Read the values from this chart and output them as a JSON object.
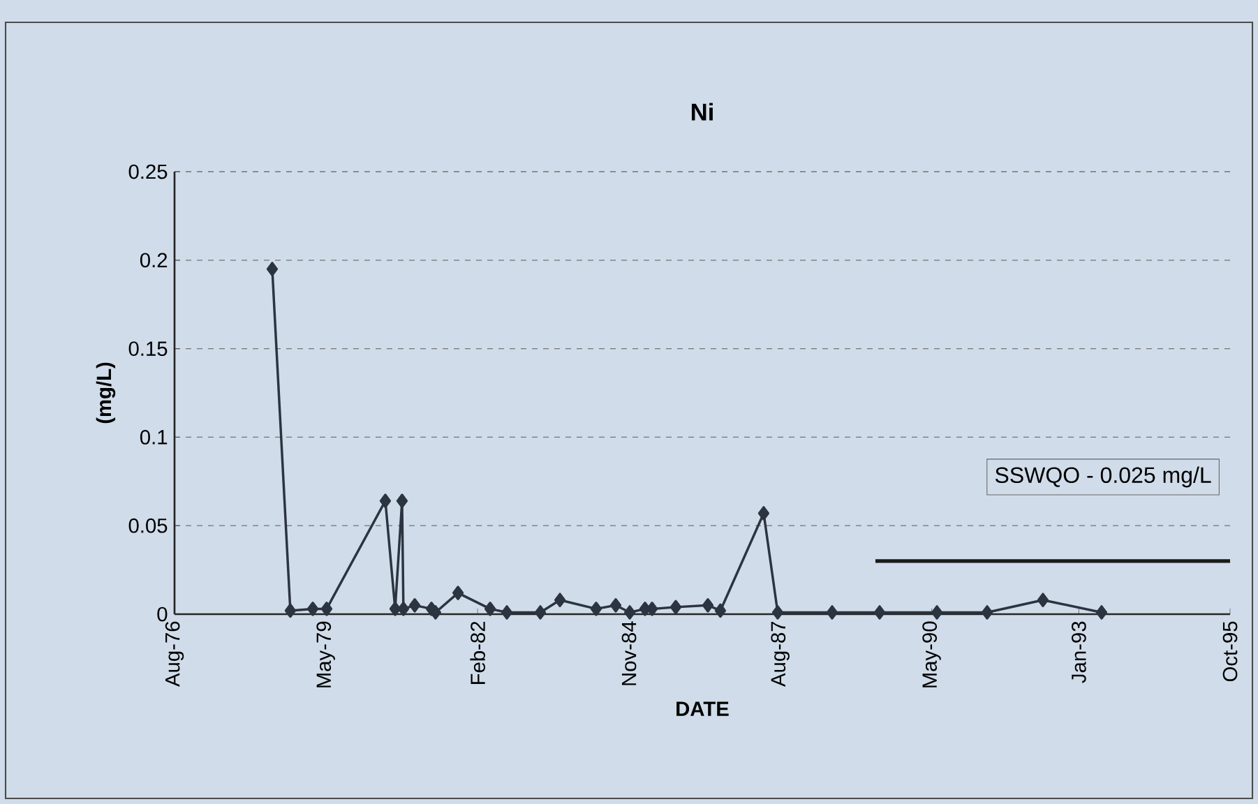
{
  "chart_data": {
    "type": "line",
    "title": "Ni",
    "xlabel": "DATE",
    "ylabel": "(mg/L)",
    "x": [
      "1978-05-11",
      "1978-09-08",
      "1979-02-04",
      "1979-05-07",
      "1980-05-30",
      "1980-08-03",
      "1980-09-18",
      "1980-09-27",
      "1980-12-11",
      "1981-04-01",
      "1981-04-28",
      "1981-09-24",
      "1982-04-25",
      "1982-08-14",
      "1983-03-24",
      "1983-08-01",
      "1984-03-28",
      "1984-08-05",
      "1984-11-06",
      "1985-02-15",
      "1985-04-03",
      "1985-09-07",
      "1986-04-08",
      "1986-06-30",
      "1987-04-13",
      "1987-07-15",
      "1988-07-10",
      "1989-05-21",
      "1990-06-05",
      "1991-05-04",
      "1992-05-08",
      "1993-06-01"
    ],
    "series": [
      {
        "color": "#2b3440",
        "marker": "diamond",
        "values": [
          0.195,
          0.002,
          0.003,
          0.003,
          0.064,
          0.003,
          0.064,
          0.003,
          0.005,
          0.003,
          0.001,
          0.012,
          0.003,
          0.001,
          0.001,
          0.008,
          0.003,
          0.005,
          0.001,
          0.003,
          0.003,
          0.004,
          0.005,
          0.002,
          0.057,
          0.001,
          0.001,
          0.001,
          0.001,
          0.001,
          0.008,
          0.001
        ]
      },
      {
        "color": "#1a1a1a",
        "marker": "none",
        "x": [
          "1989-04-23",
          "1995-10-01"
        ],
        "values": [
          0.03,
          0.03
        ]
      }
    ],
    "annotations": [
      "SSWQO - 0.025 mg/L"
    ],
    "xlim": [
      "1976-08-01",
      "1995-10-01"
    ],
    "xticks": [
      {
        "value": "1976-08-01",
        "label": "Aug-76"
      },
      {
        "value": "1979-05-01",
        "label": "May-79"
      },
      {
        "value": "1982-02-01",
        "label": "Feb-82"
      },
      {
        "value": "1984-11-01",
        "label": "Nov-84"
      },
      {
        "value": "1987-08-01",
        "label": "Aug-87"
      },
      {
        "value": "1990-05-01",
        "label": "May-90"
      },
      {
        "value": "1993-01-01",
        "label": "Jan-93"
      },
      {
        "value": "1995-10-01",
        "label": "Oct-95"
      }
    ],
    "ylim": [
      0,
      0.25
    ],
    "yticks": [
      0,
      0.05,
      0.1,
      0.15,
      0.2,
      0.25
    ],
    "grid": "y"
  }
}
